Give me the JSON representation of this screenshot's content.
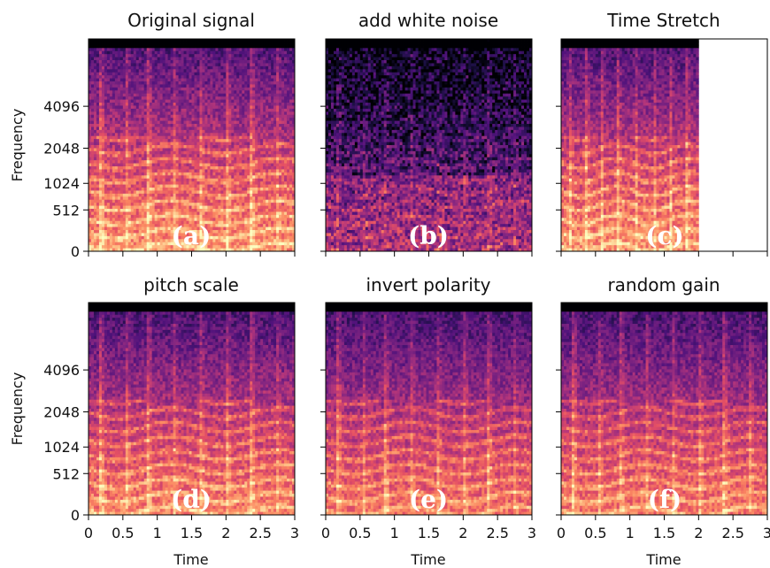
{
  "chart_data": {
    "type": "heatmap",
    "colormap": "magma",
    "xlabel": "Time",
    "ylabel": "Frequency",
    "xlim": [
      0,
      3
    ],
    "x_ticks": [
      0,
      0.5,
      1,
      1.5,
      2,
      2.5,
      3
    ],
    "x_tick_labels": [
      "0",
      "0.5",
      "1",
      "1.5",
      "2",
      "2.5",
      "3"
    ],
    "y_scale": "mel",
    "y_ticks": [
      0,
      512,
      1024,
      2048,
      4096
    ],
    "y_tick_labels": [
      "0",
      "512",
      "1024",
      "2048",
      "4096"
    ],
    "panels": [
      {
        "title": "Original signal",
        "tag": "(a)",
        "data_extent_time": 3,
        "intensity": 1.0,
        "noise": 0.05
      },
      {
        "title": "add white noise",
        "tag": "(b)",
        "data_extent_time": 3,
        "intensity": 0.55,
        "noise": 0.35
      },
      {
        "title": "Time Stretch",
        "tag": "(c)",
        "data_extent_time": 2,
        "intensity": 1.0,
        "noise": 0.05
      },
      {
        "title": "pitch scale",
        "tag": "(d)",
        "data_extent_time": 3,
        "intensity": 0.95,
        "noise": 0.05
      },
      {
        "title": "invert polarity",
        "tag": "(e)",
        "data_extent_time": 3,
        "intensity": 0.9,
        "noise": 0.05
      },
      {
        "title": "random gain",
        "tag": "(f)",
        "data_extent_time": 3,
        "intensity": 0.92,
        "noise": 0.05
      }
    ]
  }
}
